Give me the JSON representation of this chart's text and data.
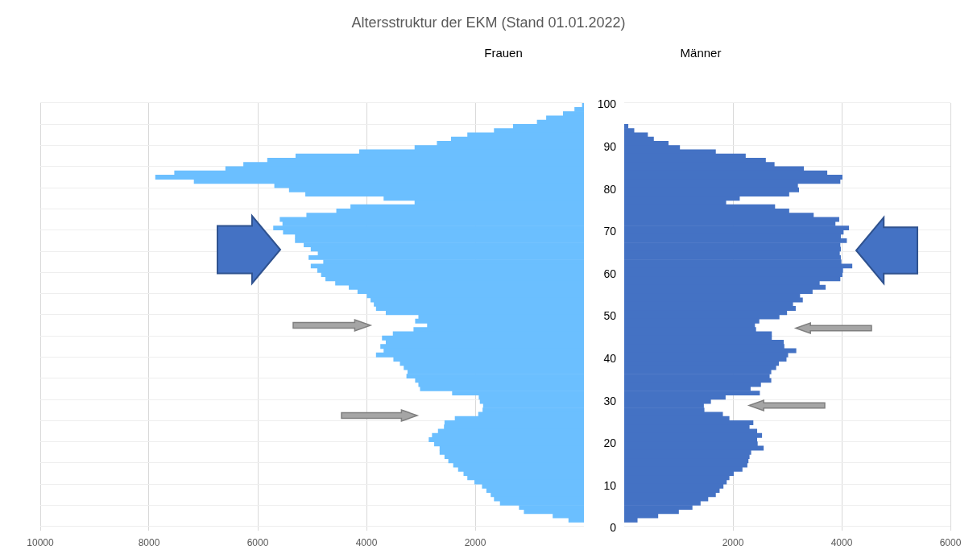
{
  "chart_data": [
    {
      "type": "bar",
      "orientation": "horizontal",
      "title": "Altersstruktur der EKM (Stand 01.01.2022)",
      "categories": [
        "100",
        null,
        null,
        null,
        null,
        null,
        null,
        null,
        null,
        null,
        "90",
        null,
        null,
        null,
        null,
        null,
        null,
        null,
        null,
        null,
        "80",
        null,
        null,
        null,
        null,
        null,
        null,
        null,
        null,
        null,
        "70",
        null,
        null,
        null,
        null,
        null,
        null,
        null,
        null,
        null,
        "60",
        null,
        null,
        null,
        null,
        null,
        null,
        null,
        null,
        null,
        "50",
        null,
        null,
        null,
        null,
        null,
        null,
        null,
        null,
        null,
        "40",
        null,
        null,
        null,
        null,
        null,
        null,
        null,
        null,
        null,
        "30",
        null,
        null,
        null,
        null,
        null,
        null,
        null,
        null,
        null,
        "20",
        null,
        null,
        null,
        null,
        null,
        null,
        null,
        null,
        null,
        "10",
        null,
        null,
        null,
        null,
        null,
        null,
        null,
        null,
        null,
        "0"
      ],
      "series": [
        {
          "name": "Frauen",
          "color": "#6bbfff",
          "values": [
            30,
            170,
            380,
            690,
            860,
            1300,
            1650,
            2140,
            2440,
            2700,
            3110,
            4130,
            5300,
            5820,
            6260,
            6590,
            7530,
            7880,
            7170,
            5690,
            5420,
            5120,
            3680,
            3110,
            4290,
            4550,
            5100,
            5590,
            5540,
            5710,
            5530,
            5310,
            5310,
            5150,
            5020,
            4890,
            5060,
            4790,
            5020,
            4900,
            4830,
            4750,
            4570,
            4320,
            4160,
            3990,
            3920,
            3860,
            3820,
            3640,
            3040,
            3100,
            2880,
            3130,
            3510,
            3710,
            3640,
            3740,
            3680,
            3820,
            3500,
            3380,
            3310,
            3240,
            3260,
            3100,
            3040,
            3010,
            2420,
            1930,
            1910,
            1850,
            1860,
            1940,
            2370,
            2560,
            2570,
            2680,
            2790,
            2850,
            2750,
            2650,
            2650,
            2560,
            2490,
            2400,
            2310,
            2210,
            2140,
            2010,
            1870,
            1790,
            1710,
            1650,
            1540,
            1190,
            1100,
            570,
            280,
            null,
            null
          ]
        }
      ],
      "xlim": [
        10000,
        0
      ],
      "xticks": [
        10000,
        8000,
        6000,
        4000,
        2000
      ],
      "grid": true,
      "tick_labels": "x"
    },
    {
      "type": "bar",
      "orientation": "horizontal",
      "categories": [
        "100",
        null,
        null,
        null,
        null,
        null,
        null,
        null,
        null,
        null,
        "90",
        null,
        null,
        null,
        null,
        null,
        null,
        null,
        null,
        null,
        "80",
        null,
        null,
        null,
        null,
        null,
        null,
        null,
        null,
        null,
        "70",
        null,
        null,
        null,
        null,
        null,
        null,
        null,
        null,
        null,
        "60",
        null,
        null,
        null,
        null,
        null,
        null,
        null,
        null,
        null,
        "50",
        null,
        null,
        null,
        null,
        null,
        null,
        null,
        null,
        null,
        "40",
        null,
        null,
        null,
        null,
        null,
        null,
        null,
        null,
        null,
        "30",
        null,
        null,
        null,
        null,
        null,
        null,
        null,
        null,
        null,
        "20",
        null,
        null,
        null,
        null,
        null,
        null,
        null,
        null,
        null,
        "10",
        null,
        null,
        null,
        null,
        null,
        null,
        null,
        null,
        null,
        "0"
      ],
      "series": [
        {
          "name": "Männer",
          "color": "#4472c4",
          "values": [
            null,
            null,
            null,
            null,
            null,
            70,
            180,
            430,
            540,
            810,
            1020,
            1680,
            2230,
            2600,
            2760,
            3300,
            3730,
            4010,
            3970,
            3190,
            3210,
            3030,
            2120,
            1870,
            2770,
            3030,
            3480,
            3950,
            3880,
            4130,
            4030,
            3980,
            4090,
            3970,
            3980,
            3960,
            3980,
            3990,
            4190,
            4020,
            4010,
            3970,
            3590,
            3700,
            3460,
            3230,
            3280,
            3100,
            3150,
            2990,
            2850,
            2480,
            2400,
            2420,
            2710,
            2710,
            2930,
            2940,
            3160,
            3010,
            2980,
            2840,
            2790,
            2700,
            2670,
            2700,
            2510,
            2320,
            2490,
            1860,
            1590,
            1460,
            1470,
            1810,
            1930,
            2370,
            2300,
            2440,
            2530,
            2440,
            2450,
            2560,
            2330,
            2300,
            2280,
            2260,
            2170,
            2010,
            1930,
            1880,
            1820,
            1750,
            1680,
            1540,
            1400,
            1250,
            1000,
            620,
            240,
            null,
            null
          ]
        }
      ],
      "xlim": [
        0,
        6000
      ],
      "xticks": [
        2000,
        4000,
        6000
      ],
      "grid": true
    }
  ]
}
